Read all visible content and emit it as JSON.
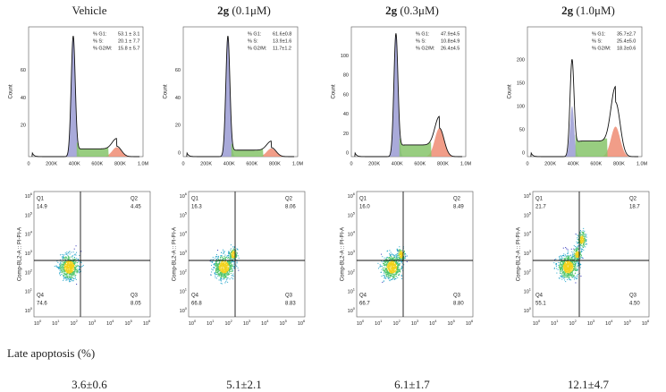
{
  "panels": [
    {
      "prefix": "",
      "treatment": "Vehicle",
      "histogram": {
        "yticks": [
          "20",
          "40",
          "60"
        ],
        "stats": [
          {
            "label": "% G1:",
            "value": "53.1 ± 3.1"
          },
          {
            "label": "% S:",
            "value": "20.1 ± 7.7"
          },
          {
            "label": "% G2/M:",
            "value": "15.8 ± 5.7"
          }
        ]
      },
      "quadrants": [
        {
          "name": "Q1",
          "value": "14.9"
        },
        {
          "name": "Q2",
          "value": "4.45"
        },
        {
          "name": "Q4",
          "value": "74.6"
        },
        {
          "name": "Q3",
          "value": "8.05"
        }
      ],
      "late_apoptosis": "3.6±0.6"
    },
    {
      "prefix": "2g",
      "treatment": " (0.1μM)",
      "histogram": {
        "yticks": [
          "0",
          "20",
          "40",
          "60"
        ],
        "stats": [
          {
            "label": "% G1:",
            "value": "61.6±0.8"
          },
          {
            "label": "% S:",
            "value": "13.9±1.6"
          },
          {
            "label": "% G2/M:",
            "value": "11.7±1.2"
          }
        ]
      },
      "quadrants": [
        {
          "name": "Q1",
          "value": "16.3"
        },
        {
          "name": "Q2",
          "value": "8.06"
        },
        {
          "name": "Q4",
          "value": "66.8"
        },
        {
          "name": "Q3",
          "value": "8.83"
        }
      ],
      "late_apoptosis": "5.1±2.1"
    },
    {
      "prefix": "2g",
      "treatment": " (0.3μM)",
      "histogram": {
        "yticks": [
          "0",
          "20",
          "40",
          "60",
          "80",
          "100"
        ],
        "stats": [
          {
            "label": "% G1:",
            "value": "47.9±4.5"
          },
          {
            "label": "% S:",
            "value": "10.8±4.9"
          },
          {
            "label": "% G2/M:",
            "value": "26.4±4.5"
          }
        ]
      },
      "quadrants": [
        {
          "name": "Q1",
          "value": "16.0"
        },
        {
          "name": "Q2",
          "value": "8.49"
        },
        {
          "name": "Q4",
          "value": "66.7"
        },
        {
          "name": "Q3",
          "value": "8.80"
        }
      ],
      "late_apoptosis": "6.1±1.7"
    },
    {
      "prefix": "2g",
      "treatment": " (1.0μM)",
      "histogram": {
        "yticks": [
          "0",
          "50",
          "100",
          "150",
          "200"
        ],
        "stats": [
          {
            "label": "% G1:",
            "value": "35.7±2.7"
          },
          {
            "label": "% S:",
            "value": "25.4±5.0"
          },
          {
            "label": "% G2/M:",
            "value": "18.3±0.6"
          }
        ]
      },
      "quadrants": [
        {
          "name": "Q1",
          "value": "21.7"
        },
        {
          "name": "Q2",
          "value": "18.7"
        },
        {
          "name": "Q4",
          "value": "55.1"
        },
        {
          "name": "Q3",
          "value": "4.50"
        }
      ],
      "late_apoptosis": "12.1±4.7"
    }
  ],
  "histogram_xticks": [
    "0",
    "200K",
    "400K",
    "600K",
    "800K",
    "1.0M"
  ],
  "histogram_ylabel": "Count",
  "dotplot_ylabel": "Comp-BL2-A :: PI-PI-A",
  "dotplot_tick_base": "10",
  "dotplot_tick_exponents": [
    "0",
    "1",
    "2",
    "3",
    "4",
    "5",
    "6"
  ],
  "late_apoptosis_label": "Late apoptosis (%)"
}
